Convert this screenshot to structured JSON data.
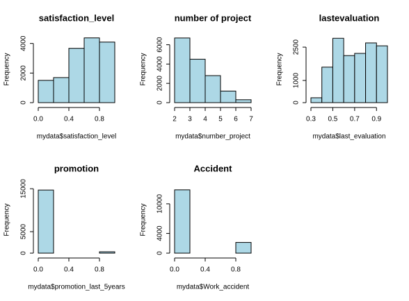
{
  "chart_data": [
    {
      "type": "histogram",
      "title": "satisfaction_level",
      "xlabel": "mydata$satisfaction_level",
      "ylabel": "Frequency",
      "color": "#add8e6",
      "bins": [
        0,
        0.2,
        0.4,
        0.6,
        0.8,
        1
      ],
      "values": [
        1506,
        1694,
        3670,
        4376,
        4094
      ],
      "xlim": [
        0,
        1
      ],
      "xticks": [
        {
          "value": 0,
          "label": "0.0"
        },
        0.4,
        0.8
      ],
      "ylim": [
        0,
        4500
      ],
      "yticks": [
        0,
        2000,
        4000
      ]
    },
    {
      "type": "histogram",
      "title": "number of project",
      "xlabel": "mydata$number_project",
      "ylabel": "Frequency",
      "color": "#add8e6",
      "bins": [
        2,
        3,
        4,
        5,
        6,
        7
      ],
      "values": [
        6700,
        4500,
        2800,
        1200,
        300
      ],
      "xlim": [
        2,
        7
      ],
      "xticks": [
        2,
        3,
        4,
        5,
        6,
        7
      ],
      "ylim": [
        0,
        6900
      ],
      "yticks": [
        0,
        2000,
        4000,
        6000
      ]
    },
    {
      "type": "histogram",
      "title": "lastevaluation",
      "xlabel": "mydata$last_evaluation",
      "ylabel": "Frequency",
      "color": "#add8e6",
      "bins": [
        0.3,
        0.4,
        0.5,
        0.6,
        0.7,
        0.8,
        0.9,
        1
      ],
      "values": [
        220,
        1600,
        2900,
        2120,
        2220,
        2690,
        2560
      ],
      "xlim": [
        0.3,
        1
      ],
      "xticks": [
        0.3,
        0.5,
        0.7,
        0.9
      ],
      "ylim": [
        0,
        3000
      ],
      "yticks": [
        0,
        1000,
        2500
      ]
    },
    {
      "type": "histogram",
      "title": "promotion",
      "xlabel": "mydata$promotion_last_5years",
      "ylabel": "Frequency",
      "color": "#add8e6",
      "bins": [
        0,
        0.2,
        0.4,
        0.6,
        0.8,
        1
      ],
      "values": [
        14680,
        0,
        0,
        0,
        319
      ],
      "xlim": [
        0,
        1
      ],
      "xticks": [
        {
          "value": 0,
          "label": "0.0"
        },
        0.4,
        0.8
      ],
      "ylim": [
        0,
        15500
      ],
      "yticks": [
        0,
        5000,
        15000
      ]
    },
    {
      "type": "histogram",
      "title": "Accident",
      "xlabel": "mydata$Work_accident",
      "ylabel": "Frequency",
      "color": "#add8e6",
      "bins": [
        0,
        0.2,
        0.4,
        0.6,
        0.8,
        1
      ],
      "values": [
        12830,
        0,
        0,
        0,
        2169
      ],
      "xlim": [
        0,
        1
      ],
      "xticks": [
        {
          "value": 0,
          "label": "0.0"
        },
        0.4,
        0.8
      ],
      "ylim": [
        0,
        13500
      ],
      "yticks": [
        0,
        4000,
        10000
      ]
    }
  ]
}
